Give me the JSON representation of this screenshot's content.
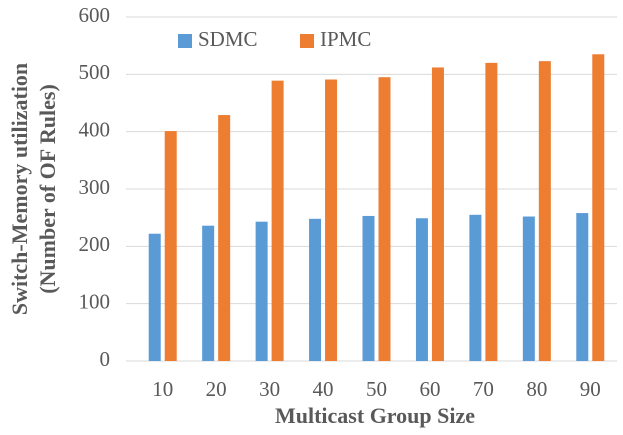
{
  "chart_data": {
    "type": "bar",
    "ylabel": [
      "Switch-Memory utilization",
      "(Number of OF Rules)"
    ],
    "xlabel": "Multicast Group Size",
    "categories": [
      "10",
      "20",
      "30",
      "40",
      "50",
      "60",
      "70",
      "80",
      "90"
    ],
    "series": [
      {
        "name": "SDMC",
        "color": "#5b9bd5",
        "values": [
          222,
          236,
          243,
          248,
          253,
          249,
          255,
          252,
          258
        ]
      },
      {
        "name": "IPMC",
        "color": "#ed7d31",
        "values": [
          401,
          429,
          489,
          491,
          495,
          512,
          520,
          523,
          535
        ]
      }
    ],
    "ylim": [
      0,
      600
    ],
    "yticks": [
      0,
      100,
      200,
      300,
      400,
      500,
      600
    ],
    "grid": true,
    "legend": "top-left"
  }
}
